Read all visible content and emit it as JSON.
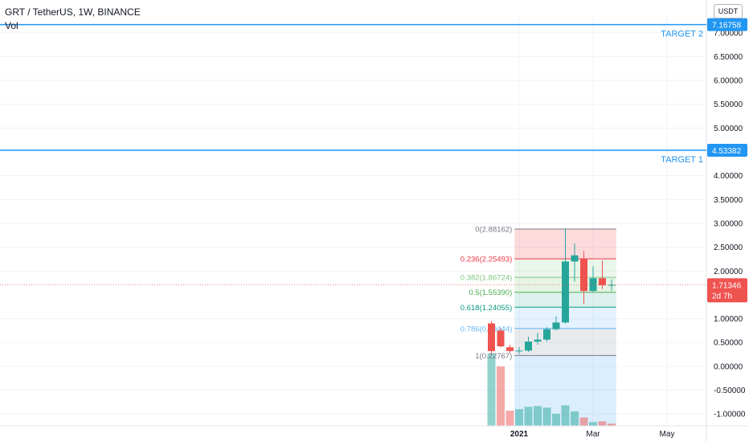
{
  "header": {
    "symbol_line": "GRT / TetherUS, 1W, BINANCE",
    "volume_label": "Vol"
  },
  "currency_badge": "USDT",
  "colors": {
    "up": "#26a69a",
    "down": "#ef5350",
    "target_line": "#2196f3",
    "grid": "#f0f3fa"
  },
  "chart_data": {
    "type": "candlestick",
    "title": "GRT / TetherUS, 1W, BINANCE",
    "y_axis": {
      "ylim": [
        -1.25,
        7.35
      ],
      "ticks": [
        7.0,
        6.5,
        6.0,
        5.5,
        5.0,
        4.0,
        3.5,
        3.0,
        2.5,
        2.0,
        1.0,
        0.5,
        0.0,
        -0.5,
        -1.0
      ],
      "tick_labels": [
        "7.00000",
        "6.50000",
        "6.00000",
        "5.50000",
        "5.00000",
        "4.00000",
        "3.50000",
        "3.00000",
        "2.50000",
        "2.00000",
        "1.00000",
        "0.50000",
        "0.00000",
        "-0.50000",
        "-1.00000"
      ],
      "grid": true
    },
    "x_axis": {
      "tick_labels": [
        "2021",
        "Mar",
        "May"
      ],
      "tick_weeks": [
        0,
        8,
        16
      ]
    },
    "candles": [
      {
        "week": -3,
        "open": 0.9,
        "high": 0.95,
        "low": 0.27,
        "close": 0.32
      },
      {
        "week": -2,
        "open": 0.75,
        "high": 0.8,
        "low": 0.4,
        "close": 0.42
      },
      {
        "week": -1,
        "open": 0.4,
        "high": 0.45,
        "low": 0.28,
        "close": 0.32
      },
      {
        "week": 0,
        "open": 0.32,
        "high": 0.4,
        "low": 0.26,
        "close": 0.33
      },
      {
        "week": 1,
        "open": 0.33,
        "high": 0.62,
        "low": 0.3,
        "close": 0.52
      },
      {
        "week": 2,
        "open": 0.52,
        "high": 0.7,
        "low": 0.45,
        "close": 0.56
      },
      {
        "week": 3,
        "open": 0.56,
        "high": 0.82,
        "low": 0.52,
        "close": 0.78
      },
      {
        "week": 4,
        "open": 0.78,
        "high": 1.05,
        "low": 0.75,
        "close": 0.92
      },
      {
        "week": 5,
        "open": 0.92,
        "high": 2.88,
        "low": 0.9,
        "close": 2.2
      },
      {
        "week": 6,
        "open": 2.2,
        "high": 2.58,
        "low": 1.78,
        "close": 2.33
      },
      {
        "week": 7,
        "open": 2.25,
        "high": 2.42,
        "low": 1.3,
        "close": 1.58
      },
      {
        "week": 8,
        "open": 1.58,
        "high": 2.1,
        "low": 1.55,
        "close": 1.85
      },
      {
        "week": 9,
        "open": 1.85,
        "high": 2.22,
        "low": 1.62,
        "close": 1.7
      },
      {
        "week": 10,
        "open": 1.7,
        "high": 1.83,
        "low": 1.58,
        "close": 1.71
      }
    ],
    "volume_bars": [
      {
        "week": -3,
        "rel": 0.95,
        "dir": "up"
      },
      {
        "week": -2,
        "rel": 0.78,
        "dir": "down"
      },
      {
        "week": -1,
        "rel": 0.2,
        "dir": "down"
      },
      {
        "week": 0,
        "rel": 0.22,
        "dir": "up"
      },
      {
        "week": 1,
        "rel": 0.25,
        "dir": "up"
      },
      {
        "week": 2,
        "rel": 0.26,
        "dir": "up"
      },
      {
        "week": 3,
        "rel": 0.24,
        "dir": "up"
      },
      {
        "week": 4,
        "rel": 0.16,
        "dir": "up"
      },
      {
        "week": 5,
        "rel": 0.27,
        "dir": "up"
      },
      {
        "week": 6,
        "rel": 0.19,
        "dir": "up"
      },
      {
        "week": 7,
        "rel": 0.11,
        "dir": "down"
      },
      {
        "week": 8,
        "rel": 0.05,
        "dir": "up"
      },
      {
        "week": 9,
        "rel": 0.06,
        "dir": "down"
      },
      {
        "week": 10,
        "rel": 0.03,
        "dir": "down"
      }
    ],
    "fib_levels": [
      {
        "label": "0(2.88162)",
        "value": 2.88162,
        "color": "#787b86"
      },
      {
        "label": "0.236(2.25493)",
        "value": 2.25493,
        "color": "#f23645"
      },
      {
        "label": "0.382(1.86724)",
        "value": 1.86724,
        "color": "#81c784"
      },
      {
        "label": "0.5(1.55390)",
        "value": 1.5539,
        "color": "#4caf50"
      },
      {
        "label": "0.618(1.24055)",
        "value": 1.24055,
        "color": "#089981"
      },
      {
        "label": "0.786(0.79444)",
        "value": 0.79444,
        "color": "#64b5f6"
      },
      {
        "label": "1(0.22767)",
        "value": 0.22767,
        "color": "#787b86"
      }
    ],
    "fib_zones": [
      {
        "from": 2.88162,
        "to": 2.25493,
        "color": "#f23645",
        "opacity": 0.18
      },
      {
        "from": 2.25493,
        "to": 1.86724,
        "color": "#81c784",
        "opacity": 0.16
      },
      {
        "from": 1.86724,
        "to": 1.5539,
        "color": "#4caf50",
        "opacity": 0.14
      },
      {
        "from": 1.5539,
        "to": 1.24055,
        "color": "#089981",
        "opacity": 0.14
      },
      {
        "from": 1.24055,
        "to": 0.79444,
        "color": "#2196f3",
        "opacity": 0.12
      },
      {
        "from": 0.79444,
        "to": 0.22767,
        "color": "#787b86",
        "opacity": 0.16
      },
      {
        "from": 0.22767,
        "to": -1.25,
        "color": "#2196f3",
        "opacity": 0.16
      }
    ],
    "fib_week_range": [
      -0.5,
      10.5
    ],
    "targets": [
      {
        "label": "TARGET 2",
        "value": 7.17,
        "price_label": "7.16758"
      },
      {
        "label": "TARGET 1",
        "value": 4.53382,
        "price_label": "4.53382"
      }
    ],
    "current_price": {
      "value": 1.71346,
      "label": "1.71346",
      "countdown": "2d 7h"
    }
  }
}
